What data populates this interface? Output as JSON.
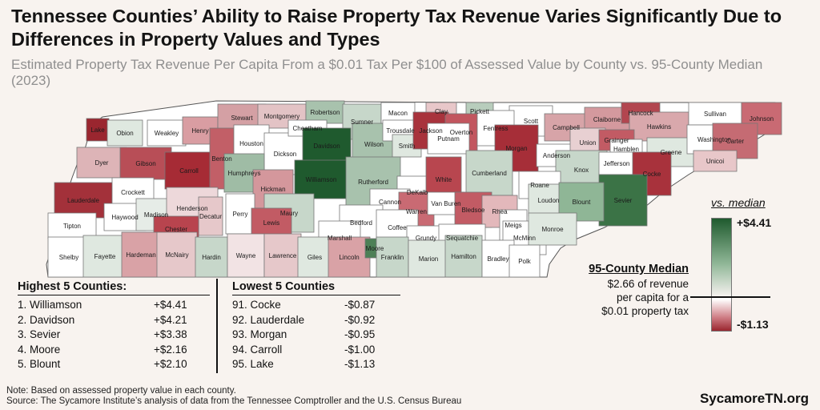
{
  "title": "Tennessee Counties’ Ability to Raise Property Tax Revenue Varies Significantly Due to Differences in Property Values and Types",
  "subtitle": "Estimated Property Tax Revenue Per Capita From a $0.01 Tax Per $100 of Assessed Value by County vs. 95-County Median (2023)",
  "colors": {
    "dark_green": "#1f5a2e",
    "mid_green": "#8fb696",
    "light_green": "#dfe8e0",
    "white": "#ffffff",
    "light_red": "#e8c1c4",
    "mid_red": "#c97c84",
    "dark_red": "#9a262f",
    "background": "#f8f3ef"
  },
  "counties": [
    {
      "name": "Lake",
      "color": "#9a262f"
    },
    {
      "name": "Obion",
      "color": "#dfe8e0"
    },
    {
      "name": "Weakley",
      "color": "#ffffff"
    },
    {
      "name": "Henry",
      "color": "#d99da2"
    },
    {
      "name": "Stewart",
      "color": "#d4a0a4"
    },
    {
      "name": "Montgomery",
      "color": "#e3c3c5"
    },
    {
      "name": "Robertson",
      "color": "#a8c2ad"
    },
    {
      "name": "Sumner",
      "color": "#c7d7ca"
    },
    {
      "name": "Macon",
      "color": "#ffffff"
    },
    {
      "name": "Clay",
      "color": "#e8c7c9"
    },
    {
      "name": "Pickett",
      "color": "#b8cdbc"
    },
    {
      "name": "Scott",
      "color": "#ffffff"
    },
    {
      "name": "Campbell",
      "color": "#d7a4a8"
    },
    {
      "name": "Claiborne",
      "color": "#d4999e"
    },
    {
      "name": "Hancock",
      "color": "#b2464f"
    },
    {
      "name": "Hawkins",
      "color": "#d9a8ac"
    },
    {
      "name": "Sullivan",
      "color": "#ffffff"
    },
    {
      "name": "Johnson",
      "color": "#c96a73"
    },
    {
      "name": "Dyer",
      "color": "#ddb4b7"
    },
    {
      "name": "Gibson",
      "color": "#b84e57"
    },
    {
      "name": "Carroll",
      "color": "#a62b35"
    },
    {
      "name": "Benton",
      "color": "#c25f67"
    },
    {
      "name": "Houston",
      "color": "#ffffff"
    },
    {
      "name": "Dickson",
      "color": "#ffffff"
    },
    {
      "name": "Cheatham",
      "color": "#ffffff"
    },
    {
      "name": "Davidson",
      "color": "#1f5a2e"
    },
    {
      "name": "Wilson",
      "color": "#a8c2ad"
    },
    {
      "name": "Trousdale",
      "color": "#ffffff"
    },
    {
      "name": "Smith",
      "color": "#dfe8e0"
    },
    {
      "name": "Jackson",
      "color": "#a8333c"
    },
    {
      "name": "Overton",
      "color": "#c2565f"
    },
    {
      "name": "Fentress",
      "color": "#ffffff"
    },
    {
      "name": "Putnam",
      "color": "#ffffff"
    },
    {
      "name": "Morgan",
      "color": "#a62e38"
    },
    {
      "name": "Anderson",
      "color": "#ffffff"
    },
    {
      "name": "Union",
      "color": "#e8d0d2"
    },
    {
      "name": "Grainger",
      "color": "#c25b64"
    },
    {
      "name": "Hamblen",
      "color": "#ffffff"
    },
    {
      "name": "Greene",
      "color": "#dfe8e0"
    },
    {
      "name": "Washington",
      "color": "#ffffff"
    },
    {
      "name": "Carter",
      "color": "#c56b73"
    },
    {
      "name": "Unicoi",
      "color": "#e8c7c9"
    },
    {
      "name": "Lauderdale",
      "color": "#a3313a"
    },
    {
      "name": "Crockett",
      "color": "#ffffff"
    },
    {
      "name": "Haywood",
      "color": "#ffffff"
    },
    {
      "name": "Madison",
      "color": "#e6ece7"
    },
    {
      "name": "Henderson",
      "color": "#edd8da"
    },
    {
      "name": "Decatur",
      "color": "#e6c8ca"
    },
    {
      "name": "Humphreys",
      "color": "#9fbca5"
    },
    {
      "name": "Hickman",
      "color": "#d4979c"
    },
    {
      "name": "Perry",
      "color": "#ffffff"
    },
    {
      "name": "Williamson",
      "color": "#1f5a2e"
    },
    {
      "name": "Rutherford",
      "color": "#a8c2ad"
    },
    {
      "name": "DeKalb",
      "color": "#ffffff"
    },
    {
      "name": "White",
      "color": "#b8464f"
    },
    {
      "name": "Cumberland",
      "color": "#c7d7ca"
    },
    {
      "name": "Knox",
      "color": "#c7d7ca"
    },
    {
      "name": "Jefferson",
      "color": "#ffffff"
    },
    {
      "name": "Cocke",
      "color": "#a8323c"
    },
    {
      "name": "Sevier",
      "color": "#3b7346"
    },
    {
      "name": "Roane",
      "color": "#ffffff"
    },
    {
      "name": "Loudon",
      "color": "#dfe8e0"
    },
    {
      "name": "Blount",
      "color": "#8fb696"
    },
    {
      "name": "Tipton",
      "color": "#ffffff"
    },
    {
      "name": "Chester",
      "color": "#b8444e"
    },
    {
      "name": "Maury",
      "color": "#c7d7ca"
    },
    {
      "name": "Cannon",
      "color": "#ffffff"
    },
    {
      "name": "Warren",
      "color": "#c96a73"
    },
    {
      "name": "Van Buren",
      "color": "#ffffff"
    },
    {
      "name": "Bledsoe",
      "color": "#c25b64"
    },
    {
      "name": "Rhea",
      "color": "#e3b8bb"
    },
    {
      "name": "Meigs",
      "color": "#ffffff"
    },
    {
      "name": "McMinn",
      "color": "#ffffff"
    },
    {
      "name": "Monroe",
      "color": "#dfe8e0"
    },
    {
      "name": "Lewis",
      "color": "#c25b64"
    },
    {
      "name": "Bedford",
      "color": "#ffffff"
    },
    {
      "name": "Coffee",
      "color": "#ffffff"
    },
    {
      "name": "Marshall",
      "color": "#ffffff"
    },
    {
      "name": "Grundy",
      "color": "#ffffff"
    },
    {
      "name": "Sequatchie",
      "color": "#ffffff"
    },
    {
      "name": "Shelby",
      "color": "#ffffff"
    },
    {
      "name": "Fayette",
      "color": "#dfe8e0"
    },
    {
      "name": "Hardeman",
      "color": "#d9a2a6"
    },
    {
      "name": "McNairy",
      "color": "#e6c8ca"
    },
    {
      "name": "Hardin",
      "color": "#c7d7ca"
    },
    {
      "name": "Wayne",
      "color": "#f2e3e4"
    },
    {
      "name": "Lawrence",
      "color": "#e6c8ca"
    },
    {
      "name": "Giles",
      "color": "#dfe8e0"
    },
    {
      "name": "Lincoln",
      "color": "#d9a2a6"
    },
    {
      "name": "Moore",
      "color": "#4d8056"
    },
    {
      "name": "Franklin",
      "color": "#c7d7ca"
    },
    {
      "name": "Marion",
      "color": "#dfe8e0"
    },
    {
      "name": "Hamilton",
      "color": "#c7d7ca"
    },
    {
      "name": "Bradley",
      "color": "#ffffff"
    },
    {
      "name": "Polk",
      "color": "#ffffff"
    }
  ],
  "highest": {
    "heading": "Highest 5 Counties:",
    "rows": [
      {
        "label": "1. Williamson",
        "value": "+$4.41"
      },
      {
        "label": "2. Davidson",
        "value": "+$4.21"
      },
      {
        "label": "3. Sevier",
        "value": "+$3.38"
      },
      {
        "label": "4. Moore",
        "value": "+$2.16"
      },
      {
        "label": "5. Blount",
        "value": "+$2.10"
      }
    ]
  },
  "lowest": {
    "heading": "Lowest 5 Counties",
    "rows": [
      {
        "label": "91. Cocke",
        "value": "-$0.87"
      },
      {
        "label": "92. Lauderdale",
        "value": "-$0.92"
      },
      {
        "label": "93. Morgan",
        "value": "-$0.95"
      },
      {
        "label": "94. Carroll",
        "value": "-$1.00"
      },
      {
        "label": "95. Lake",
        "value": "-$1.13"
      }
    ]
  },
  "median": {
    "title": "95-County Median",
    "line1": "$2.66 of revenue",
    "line2": "per capita for a",
    "line3": "$0.01 property tax"
  },
  "legend": {
    "title": "vs. median",
    "max_label": "+$4.41",
    "min_label": "-$1.13"
  },
  "footnote": {
    "note": "Note: Based on assessed property value in each county.",
    "source": "Source: The Sycamore Institute’s analysis of data from the Tennessee Comptroller and the U.S. Census Bureau"
  },
  "brand": "SycamoreTN.org"
}
